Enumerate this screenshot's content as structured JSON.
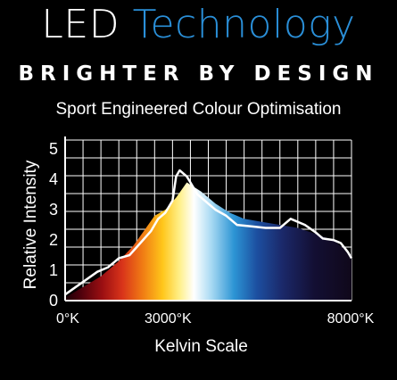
{
  "header": {
    "title_word1": "LED",
    "title_word2": "Technology",
    "tagline": "BRIGHTER BY DESIGN",
    "subtitle": "Sport Engineered Colour Optimisation"
  },
  "colors": {
    "title_white": "#ffffff",
    "title_blue": "#2a8fd8",
    "background": "#000000",
    "grid": "#ffffff",
    "line": "#ffffff"
  },
  "chart_data": {
    "type": "area",
    "xlabel": "Kelvin Scale",
    "ylabel": "Relative Intensity",
    "xlim": [
      0,
      8000
    ],
    "ylim": [
      0,
      5.3
    ],
    "x_tick_labels": [
      {
        "value": 0,
        "label": "0°K"
      },
      {
        "value": 3000,
        "label": "3000°K"
      },
      {
        "value": 8000,
        "label": "8000°K"
      }
    ],
    "y_ticks": [
      0,
      1,
      2,
      3,
      4,
      5
    ],
    "grid": true,
    "series": [
      {
        "x": [
          0,
          300,
          600,
          900,
          1200,
          1500,
          1800,
          2100,
          2400,
          2600,
          2800,
          3000,
          3100,
          3200,
          3400,
          3500,
          3700,
          4000,
          4200,
          4500,
          4800,
          5200,
          5600,
          6000,
          6300,
          6700,
          7000,
          7200,
          7500,
          7700,
          7900,
          8000
        ],
        "y": [
          0.2,
          0.45,
          0.7,
          0.95,
          1.1,
          1.4,
          1.5,
          1.9,
          2.3,
          2.7,
          2.9,
          3.3,
          4.1,
          4.3,
          4.1,
          3.9,
          3.5,
          3.2,
          3.0,
          2.8,
          2.5,
          2.45,
          2.4,
          2.4,
          2.7,
          2.5,
          2.25,
          2.05,
          2.0,
          1.9,
          1.6,
          1.4
        ]
      },
      {
        "x": [
          0,
          500,
          1000,
          1500,
          1900,
          2200,
          2500,
          2800,
          3100,
          3400,
          3800,
          4200,
          4600,
          5000,
          5500,
          6000,
          6500,
          7000,
          7500,
          8000
        ],
        "y": [
          0.1,
          0.45,
          0.8,
          1.3,
          1.8,
          2.3,
          2.8,
          3.0,
          3.4,
          3.9,
          3.6,
          3.2,
          2.9,
          2.7,
          2.6,
          2.5,
          2.4,
          2.2,
          2.0,
          1.5
        ]
      }
    ]
  }
}
